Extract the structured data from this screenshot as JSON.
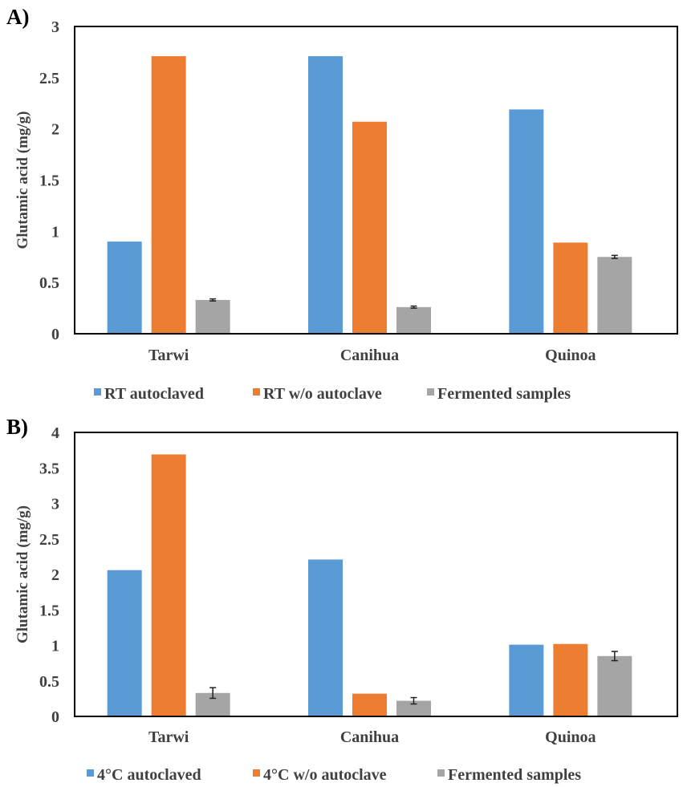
{
  "chart_data": [
    {
      "type": "bar",
      "panel_label": "A)",
      "title": "",
      "xlabel": "",
      "ylabel": "Glutamic acid (mg/g)",
      "ylim": [
        0,
        3
      ],
      "yticks": [
        "0",
        "0.5",
        "1",
        "1.5",
        "2",
        "2.5",
        "3"
      ],
      "ytick_values": [
        0,
        0.5,
        1,
        1.5,
        2,
        2.5,
        3
      ],
      "grid": false,
      "legend_position": "bottom",
      "categories": [
        "Tarwi",
        "Canihua",
        "Quinoa"
      ],
      "series": [
        {
          "name": "RT autoclaved",
          "color": "#5B9BD5",
          "values": [
            0.9,
            2.71,
            2.19
          ]
        },
        {
          "name": "RT w/o autoclave",
          "color": "#ED7D31",
          "values": [
            2.71,
            2.07,
            0.89
          ]
        },
        {
          "name": "Fermented samples",
          "color": "#A5A5A5",
          "values": [
            0.33,
            0.26,
            0.75
          ],
          "errors": [
            0.01,
            0.01,
            0.015
          ]
        }
      ]
    },
    {
      "type": "bar",
      "panel_label": "B)",
      "title": "",
      "xlabel": "",
      "ylabel": "Glutamic acid (mg/g)",
      "ylim": [
        0,
        4
      ],
      "yticks": [
        "0",
        "0.5",
        "1",
        "1.5",
        "2",
        "2.5",
        "3",
        "3.5",
        "4"
      ],
      "ytick_values": [
        0,
        0.5,
        1,
        1.5,
        2,
        2.5,
        3,
        3.5,
        4
      ],
      "grid": false,
      "legend_position": "bottom",
      "categories": [
        "Tarwi",
        "Canihua",
        "Quinoa"
      ],
      "series": [
        {
          "name": "4°C autoclaved",
          "color": "#5B9BD5",
          "values": [
            2.06,
            2.21,
            1.01
          ]
        },
        {
          "name": "4°C w/o autoclave",
          "color": "#ED7D31",
          "values": [
            3.69,
            0.32,
            1.02
          ]
        },
        {
          "name": "Fermented samples",
          "color": "#A5A5A5",
          "values": [
            0.33,
            0.22,
            0.85
          ],
          "errors": [
            0.075,
            0.045,
            0.065
          ]
        }
      ]
    }
  ]
}
